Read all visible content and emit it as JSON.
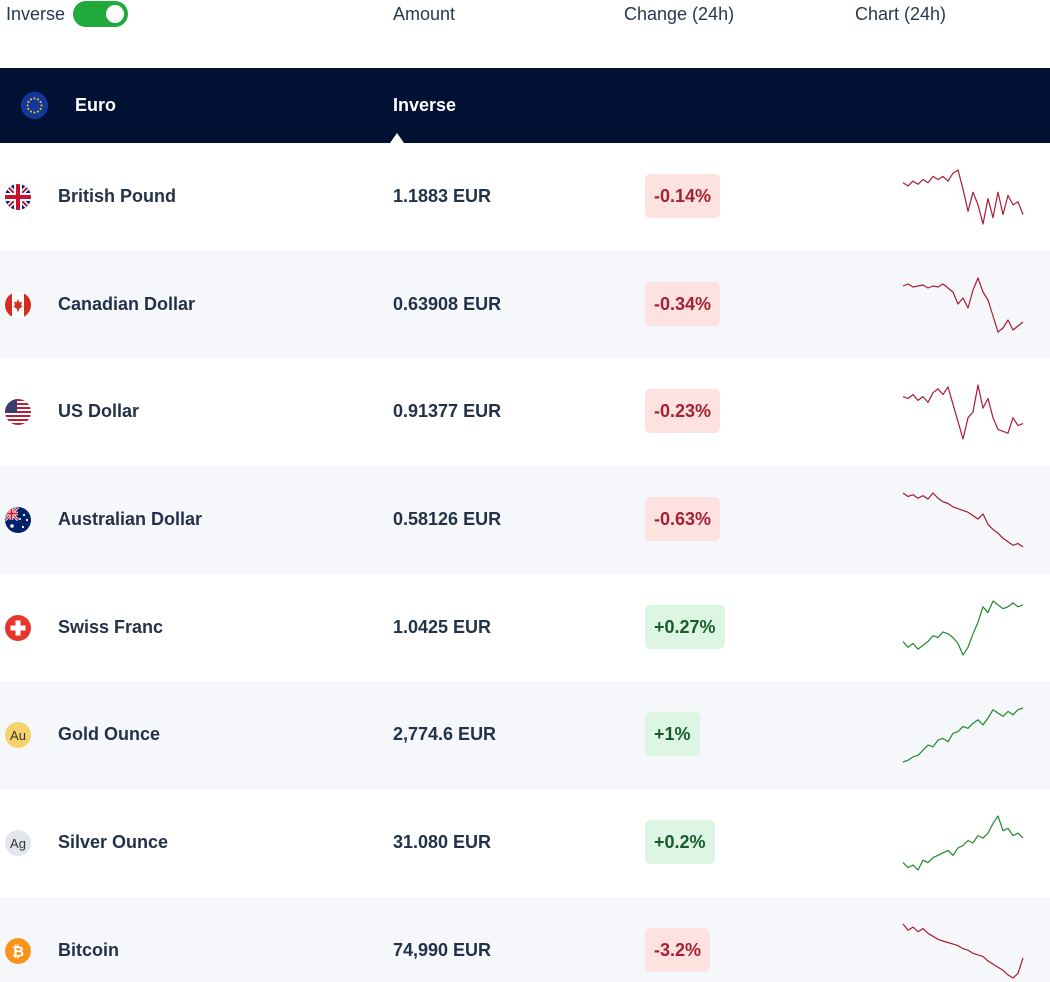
{
  "header": {
    "toggle_label": "Inverse",
    "toggle_on": true,
    "columns": {
      "amount": "Amount",
      "change": "Change (24h)",
      "chart": "Chart (24h)"
    }
  },
  "base": {
    "currency": "Euro",
    "mode": "Inverse",
    "flag_icon": "eu-flag-icon"
  },
  "colors": {
    "up": "#1f8a2c",
    "down": "#a81c33",
    "toggle": "#1faa3b",
    "base_bar": "#001133"
  },
  "rows": [
    {
      "name": "British Pound",
      "amount": "1.1883 EUR",
      "change": "-0.14%",
      "direction": "down",
      "icon": "uk-flag-icon",
      "spark": [
        62,
        60,
        63,
        61,
        64,
        62,
        66,
        64,
        66,
        63,
        68,
        70,
        58,
        44,
        56,
        48,
        36,
        52,
        40,
        56,
        42,
        54,
        48,
        50,
        42
      ]
    },
    {
      "name": "Canadian Dollar",
      "amount": "0.63908 EUR",
      "change": "-0.34%",
      "direction": "down",
      "icon": "canada-flag-icon",
      "spark": [
        62,
        64,
        61,
        62,
        63,
        60,
        62,
        61,
        64,
        60,
        56,
        44,
        50,
        40,
        58,
        70,
        56,
        48,
        32,
        16,
        20,
        28,
        18,
        22,
        26
      ]
    },
    {
      "name": "US Dollar",
      "amount": "0.91377 EUR",
      "change": "-0.23%",
      "direction": "down",
      "icon": "us-flag-icon",
      "spark": [
        58,
        56,
        60,
        54,
        58,
        52,
        62,
        66,
        60,
        68,
        50,
        32,
        14,
        36,
        42,
        70,
        46,
        56,
        36,
        24,
        22,
        20,
        36,
        28,
        30
      ]
    },
    {
      "name": "Australian Dollar",
      "amount": "0.58126 EUR",
      "change": "-0.63%",
      "direction": "down",
      "icon": "australia-flag-icon",
      "spark": [
        76,
        72,
        74,
        70,
        73,
        69,
        76,
        70,
        66,
        64,
        60,
        58,
        56,
        54,
        50,
        46,
        52,
        40,
        34,
        30,
        24,
        20,
        16,
        18,
        14
      ]
    },
    {
      "name": "Swiss Franc",
      "amount": "1.0425 EUR",
      "change": "+0.27%",
      "direction": "up",
      "icon": "swiss-flag-icon",
      "spark": [
        36,
        30,
        34,
        28,
        32,
        36,
        42,
        40,
        46,
        44,
        40,
        34,
        22,
        30,
        44,
        56,
        72,
        66,
        78,
        74,
        70,
        72,
        76,
        72,
        74
      ]
    },
    {
      "name": "Gold Ounce",
      "amount": "2,774.6 EUR",
      "change": "+1%",
      "direction": "up",
      "icon": "gold-ounce-icon",
      "spark": [
        10,
        12,
        16,
        18,
        24,
        30,
        28,
        36,
        38,
        34,
        44,
        46,
        52,
        50,
        56,
        60,
        54,
        62,
        72,
        68,
        64,
        70,
        66,
        72,
        74
      ]
    },
    {
      "name": "Silver Ounce",
      "amount": "31.080 EUR",
      "change": "+0.2%",
      "direction": "up",
      "icon": "silver-ounce-icon",
      "spark": [
        34,
        30,
        32,
        28,
        36,
        34,
        38,
        40,
        42,
        44,
        40,
        46,
        48,
        52,
        50,
        56,
        54,
        58,
        66,
        72,
        60,
        62,
        56,
        58,
        54
      ]
    },
    {
      "name": "Bitcoin",
      "amount": "74,990 EUR",
      "change": "-3.2%",
      "direction": "down",
      "icon": "bitcoin-icon",
      "spark": [
        78,
        70,
        74,
        68,
        72,
        66,
        62,
        58,
        56,
        54,
        52,
        50,
        46,
        44,
        40,
        38,
        36,
        30,
        26,
        22,
        18,
        12,
        8,
        14,
        34
      ]
    }
  ]
}
